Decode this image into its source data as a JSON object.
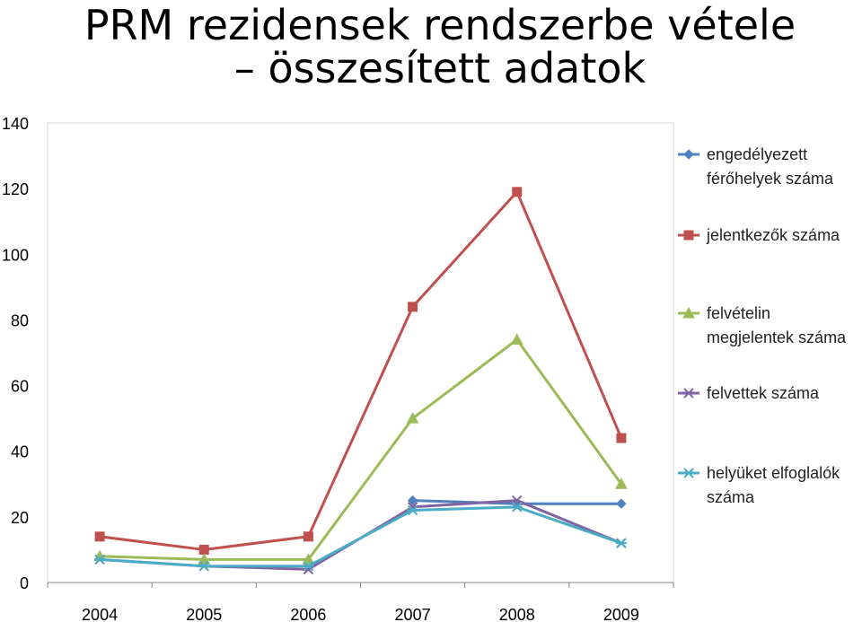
{
  "chart_data": {
    "type": "line",
    "title_line1": "PRM rezidensek rendszerbe vétele",
    "title_line2": "– összesített adatok",
    "categories": [
      "2004",
      "2005",
      "2006",
      "2007",
      "2008",
      "2009"
    ],
    "ylim": [
      0,
      140
    ],
    "yticks": [
      "0",
      "20",
      "40",
      "60",
      "80",
      "100",
      "120",
      "140"
    ],
    "grid": false,
    "legend_position": "right",
    "series": [
      {
        "name_lines": [
          "engedélyezett",
          "férőhelyek száma"
        ],
        "color": "#4F81BD",
        "marker": "diamond",
        "values": [
          null,
          null,
          null,
          25,
          24,
          24
        ]
      },
      {
        "name_lines": [
          "jelentkezők száma"
        ],
        "color": "#C0504D",
        "marker": "square",
        "values": [
          14,
          10,
          14,
          84,
          119,
          44
        ]
      },
      {
        "name_lines": [
          "felvételin",
          "megjelentek száma"
        ],
        "color": "#9BBB59",
        "marker": "triangle",
        "values": [
          8,
          7,
          7,
          50,
          74,
          30
        ]
      },
      {
        "name_lines": [
          "felvettek száma"
        ],
        "color": "#8064A2",
        "marker": "x",
        "values": [
          7,
          5,
          4,
          23,
          25,
          12
        ]
      },
      {
        "name_lines": [
          "helyüket elfoglalók",
          "száma"
        ],
        "color": "#4BACC6",
        "marker": "star",
        "values": [
          7,
          5,
          5,
          22,
          23,
          12
        ]
      }
    ]
  }
}
